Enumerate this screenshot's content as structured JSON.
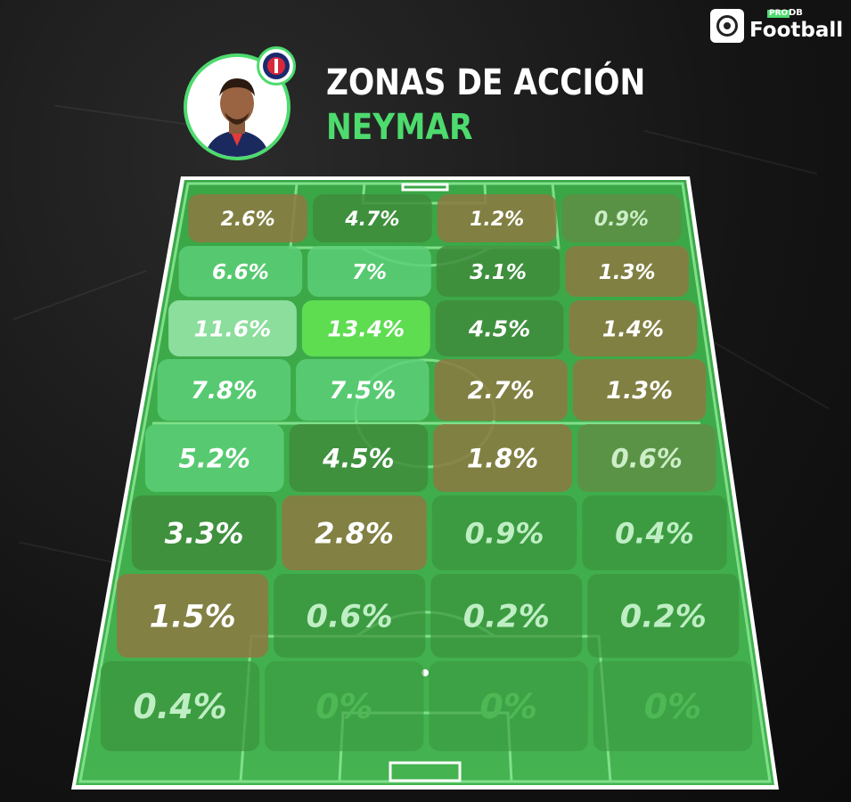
{
  "logo": {
    "pro": "PRO",
    "db": "DB",
    "text": "Football"
  },
  "header": {
    "title": "ZONAS DE ACCIÓN",
    "player": "NEYMAR"
  },
  "colors": {
    "accent": "#4ddb6e",
    "pitch": "#3fae49",
    "line": "#7fe08a"
  },
  "icons": {
    "avatar": "player-photo",
    "badge": "club-crest-icon"
  },
  "grid": {
    "rows": [
      [
        {
          "v": "2.6%",
          "c": "brown"
        },
        {
          "v": "4.7%",
          "c": "green"
        },
        {
          "v": "1.2%",
          "c": "brown"
        },
        {
          "v": "0.9%",
          "c": "olive"
        }
      ],
      [
        {
          "v": "6.6%",
          "c": "light"
        },
        {
          "v": "7%",
          "c": "light"
        },
        {
          "v": "3.1%",
          "c": "green"
        },
        {
          "v": "1.3%",
          "c": "brown"
        }
      ],
      [
        {
          "v": "11.6%",
          "c": "pale"
        },
        {
          "v": "13.4%",
          "c": "bright"
        },
        {
          "v": "4.5%",
          "c": "green"
        },
        {
          "v": "1.4%",
          "c": "brown"
        }
      ],
      [
        {
          "v": "7.8%",
          "c": "light"
        },
        {
          "v": "7.5%",
          "c": "light"
        },
        {
          "v": "2.7%",
          "c": "brown"
        },
        {
          "v": "1.3%",
          "c": "brown"
        }
      ],
      [
        {
          "v": "5.2%",
          "c": "light"
        },
        {
          "v": "4.5%",
          "c": "green"
        },
        {
          "v": "1.8%",
          "c": "brown"
        },
        {
          "v": "0.6%",
          "c": "olive"
        }
      ],
      [
        {
          "v": "3.3%",
          "c": "green"
        },
        {
          "v": "2.8%",
          "c": "brown"
        },
        {
          "v": "0.9%",
          "c": "greenf"
        },
        {
          "v": "0.4%",
          "c": "greenf"
        }
      ],
      [
        {
          "v": "1.5%",
          "c": "brown"
        },
        {
          "v": "0.6%",
          "c": "greenf"
        },
        {
          "v": "0.2%",
          "c": "greenf"
        },
        {
          "v": "0.2%",
          "c": "greenf"
        }
      ],
      [
        {
          "v": "0.4%",
          "c": "greenf"
        },
        {
          "v": "0%",
          "c": "empty"
        },
        {
          "v": "0%",
          "c": "empty"
        },
        {
          "v": "0%",
          "c": "empty"
        }
      ]
    ]
  }
}
